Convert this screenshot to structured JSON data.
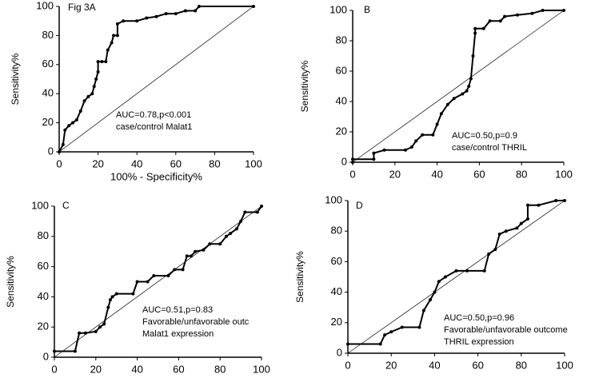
{
  "chart_data": [
    {
      "type": "line",
      "label": "Fig 3A",
      "ylabel": "Sensitivity%",
      "xlabel": "100% - Specificity%",
      "annotations": [
        "AUC=0.78,p<0.001",
        "case/control Malat1"
      ],
      "xlim": [
        0,
        100
      ],
      "ylim": [
        0,
        100
      ],
      "xticks": [
        0,
        20,
        40,
        60,
        80,
        100
      ],
      "yticks": [
        0,
        20,
        40,
        60,
        80,
        100
      ],
      "color": "#000000",
      "x": [
        0,
        2,
        3,
        5,
        7,
        9,
        11,
        13,
        15,
        17,
        18,
        19,
        20,
        20,
        22,
        24,
        25,
        27,
        28,
        30,
        30,
        33,
        40,
        45,
        50,
        55,
        60,
        65,
        70,
        72,
        100
      ],
      "values": [
        0,
        5,
        15,
        18,
        20,
        22,
        28,
        35,
        38,
        40,
        45,
        50,
        55,
        62,
        62,
        62,
        70,
        75,
        80,
        80,
        88,
        90,
        90,
        92,
        93,
        95,
        95,
        97,
        97,
        100,
        100
      ]
    },
    {
      "type": "line",
      "label": "B",
      "ylabel": "Sensitivity%",
      "annotations": [
        "AUC=0.50,p=0.9",
        "case/control THRIL"
      ],
      "xlim": [
        0,
        100
      ],
      "ylim": [
        0,
        100
      ],
      "xticks": [
        0,
        20,
        40,
        60,
        80,
        100
      ],
      "yticks": [
        0,
        20,
        40,
        60,
        80,
        100
      ],
      "color": "#000000",
      "x": [
        0,
        0,
        10,
        10,
        15,
        25,
        28,
        30,
        33,
        38,
        40,
        42,
        45,
        48,
        52,
        54,
        55,
        56,
        57,
        58,
        58,
        62,
        65,
        70,
        72,
        78,
        85,
        90,
        100
      ],
      "values": [
        0,
        2,
        2,
        6,
        8,
        8,
        10,
        14,
        18,
        18,
        25,
        32,
        38,
        42,
        45,
        47,
        50,
        55,
        70,
        85,
        88,
        88,
        93,
        93,
        96,
        97,
        98,
        100,
        100
      ]
    },
    {
      "type": "line",
      "label": "C",
      "ylabel": "Sensitivity%",
      "annotations": [
        "AUC=0.51,p=0.83",
        "Favorable/unfavorable outc",
        "Malat1 expression"
      ],
      "xlim": [
        0,
        100
      ],
      "ylim": [
        0,
        100
      ],
      "xticks": [
        0,
        20,
        40,
        60,
        80,
        100
      ],
      "yticks": [
        0,
        20,
        40,
        60,
        80,
        100
      ],
      "color": "#000000",
      "x": [
        0,
        10,
        12,
        15,
        20,
        22,
        24,
        26,
        27,
        28,
        30,
        38,
        40,
        45,
        48,
        55,
        58,
        62,
        64,
        66,
        68,
        72,
        75,
        80,
        83,
        85,
        88,
        90,
        92,
        98,
        100
      ],
      "values": [
        4,
        4,
        16,
        16,
        17,
        20,
        22,
        33,
        38,
        40,
        42,
        42,
        50,
        50,
        54,
        54,
        58,
        58,
        67,
        67,
        70,
        71,
        75,
        75,
        80,
        82,
        85,
        90,
        96,
        96,
        100
      ]
    },
    {
      "type": "line",
      "label": "D",
      "ylabel": "Sensitivity%",
      "annotations": [
        "AUC=0.50,p=0.96",
        "Favorable/unfavorable outcome",
        "THRIL expression"
      ],
      "xlim": [
        0,
        100
      ],
      "ylim": [
        0,
        100
      ],
      "xticks": [
        0,
        20,
        40,
        60,
        80,
        100
      ],
      "yticks": [
        0,
        20,
        40,
        60,
        80,
        100
      ],
      "color": "#000000",
      "x": [
        0,
        15,
        17,
        20,
        25,
        33,
        35,
        38,
        40,
        42,
        45,
        50,
        55,
        63,
        65,
        68,
        70,
        73,
        78,
        80,
        83,
        83,
        88,
        96,
        100
      ],
      "values": [
        6,
        6,
        12,
        14,
        17,
        17,
        28,
        35,
        40,
        47,
        50,
        54,
        54,
        54,
        65,
        68,
        78,
        80,
        82,
        85,
        88,
        97,
        97,
        100,
        100
      ]
    }
  ]
}
